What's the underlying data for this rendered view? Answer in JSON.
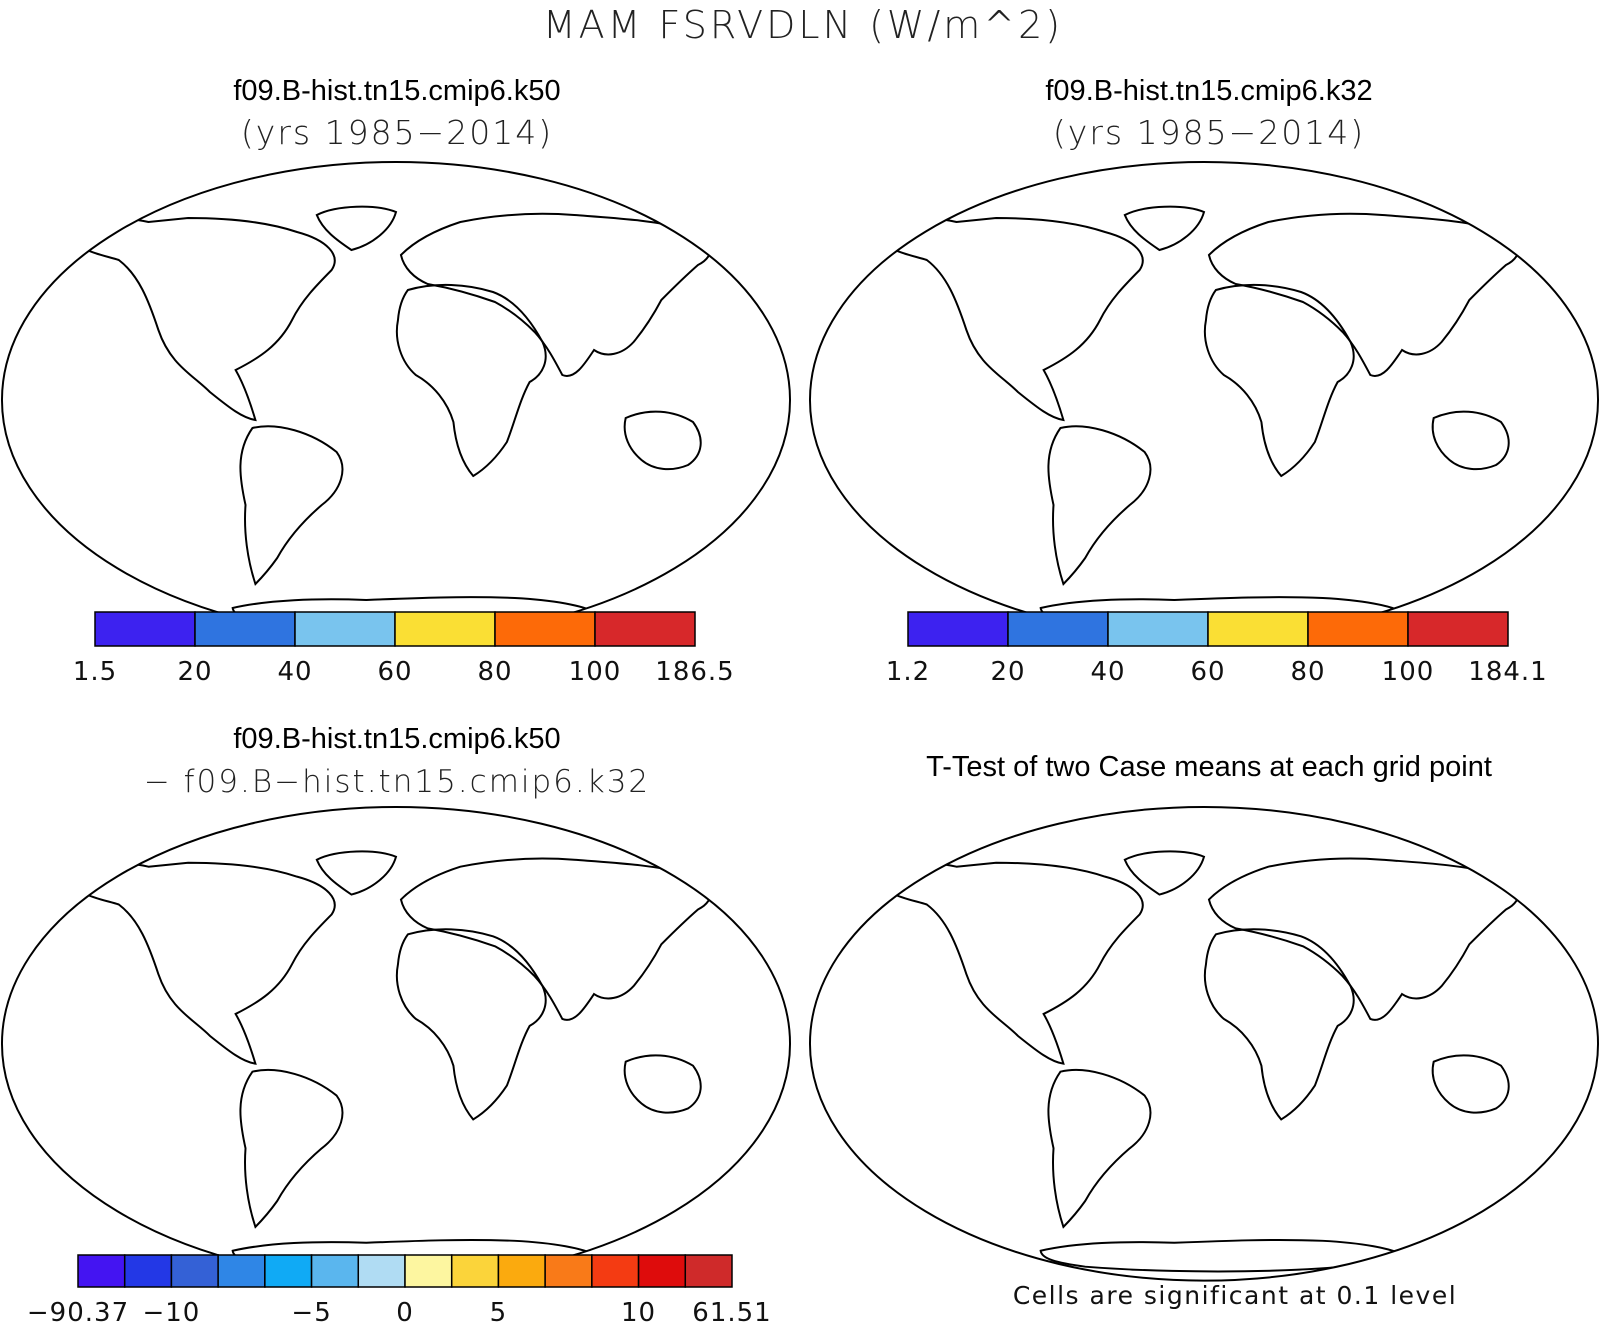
{
  "figure_title": "MAM FSRVDLN (W/m^2)",
  "panels": [
    {
      "case": "f09.B-hist.tn15.cmip6.k50",
      "years": "(yrs 1985−2014)",
      "colorbar": {
        "colors": [
          "#3d22f0",
          "#2f74e0",
          "#79c4ee",
          "#fadf34",
          "#fd6a08",
          "#d7282a"
        ],
        "labels": [
          "1.5",
          "20",
          "40",
          "60",
          "80",
          "100",
          "186.5"
        ]
      }
    },
    {
      "case": "f09.B-hist.tn15.cmip6.k32",
      "years": "(yrs 1985−2014)",
      "colorbar": {
        "colors": [
          "#3d22f0",
          "#2f74e0",
          "#79c4ee",
          "#fadf34",
          "#fd6a08",
          "#d7282a"
        ],
        "labels": [
          "1.2",
          "20",
          "40",
          "60",
          "80",
          "100",
          "184.1"
        ]
      }
    },
    {
      "case": "f09.B-hist.tn15.cmip6.k50",
      "subtitle": "− f09.B−hist.tn15.cmip6.k32",
      "colorbar": {
        "colors": [
          "#4414f2",
          "#2338e6",
          "#3461d6",
          "#2f86e6",
          "#10aaf5",
          "#5ab6ee",
          "#b0dcf3",
          "#fdf6a0",
          "#fbd43a",
          "#fbaa0e",
          "#f97a18",
          "#f43b12",
          "#de0c0c",
          "#cf2a2a"
        ],
        "labels": [
          "−90.37",
          "−10",
          "−5",
          "0",
          "5",
          "10",
          "61.51"
        ]
      }
    },
    {
      "title": "T-Test of two Case means at each grid point",
      "note": "Cells are significant at 0.1 level",
      "significant_color": "#ee0000"
    }
  ]
}
